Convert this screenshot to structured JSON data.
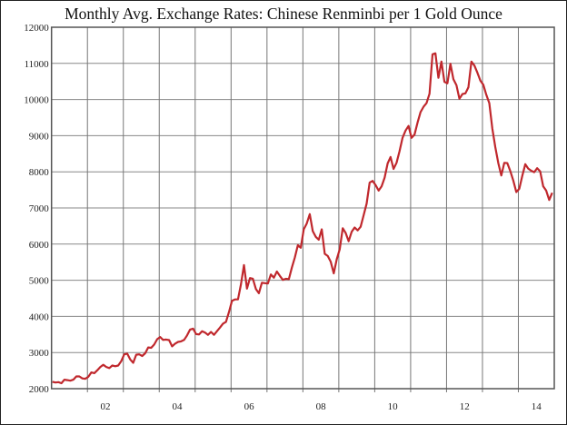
{
  "chart_data": {
    "type": "line",
    "title": "Monthly Avg. Exchange Rates: Chinese Renminbi per 1 Gold Ounce",
    "xlabel": "",
    "ylabel": "",
    "x_start": "2001-01",
    "x_frequency": "monthly",
    "xlim": [
      "2001-01",
      "2014-12"
    ],
    "ylim": [
      2000,
      12000
    ],
    "y_ticks": [
      "2000",
      "3000",
      "4000",
      "5000",
      "6000",
      "7000",
      "8000",
      "9000",
      "10000",
      "11000",
      "12000"
    ],
    "x_ticks": [
      {
        "label": "02",
        "year": 2002
      },
      {
        "label": "04",
        "year": 2004
      },
      {
        "label": "06",
        "year": 2006
      },
      {
        "label": "08",
        "year": 2008
      },
      {
        "label": "10",
        "year": 2010
      },
      {
        "label": "12",
        "year": 2012
      },
      {
        "label": "14",
        "year": 2014
      }
    ],
    "grid": true,
    "line_color": "#c0282d",
    "values": [
      2190,
      2170,
      2180,
      2150,
      2250,
      2235,
      2220,
      2250,
      2340,
      2340,
      2285,
      2275,
      2330,
      2450,
      2430,
      2510,
      2600,
      2660,
      2600,
      2570,
      2640,
      2620,
      2640,
      2760,
      2950,
      2970,
      2810,
      2715,
      2940,
      2950,
      2905,
      2980,
      3140,
      3130,
      3220,
      3370,
      3430,
      3350,
      3360,
      3345,
      3170,
      3245,
      3295,
      3310,
      3350,
      3475,
      3635,
      3660,
      3510,
      3500,
      3590,
      3550,
      3490,
      3570,
      3490,
      3590,
      3690,
      3800,
      3850,
      4120,
      4430,
      4470,
      4470,
      4890,
      5420,
      4770,
      5060,
      5040,
      4760,
      4640,
      4930,
      4920,
      4910,
      5160,
      5070,
      5240,
      5120,
      5010,
      5040,
      5030,
      5350,
      5630,
      5970,
      5900,
      6410,
      6570,
      6830,
      6360,
      6200,
      6120,
      6410,
      5730,
      5670,
      5510,
      5190,
      5580,
      5860,
      6440,
      6310,
      6080,
      6340,
      6460,
      6380,
      6480,
      6800,
      7120,
      7700,
      7750,
      7630,
      7480,
      7600,
      7840,
      8230,
      8410,
      8080,
      8250,
      8570,
      8940,
      9140,
      9270,
      8940,
      9030,
      9360,
      9650,
      9800,
      9900,
      10160,
      11250,
      11280,
      10600,
      11050,
      10490,
      10450,
      10990,
      10560,
      10400,
      10020,
      10150,
      10170,
      10340,
      11050,
      10940,
      10740,
      10520,
      10410,
      10130,
      9900,
      9200,
      8680,
      8240,
      7900,
      8250,
      8240,
      8020,
      7760,
      7440,
      7530,
      7890,
      8210,
      8090,
      8030,
      7990,
      8100,
      8010,
      7600,
      7480,
      7220,
      7420
    ]
  }
}
